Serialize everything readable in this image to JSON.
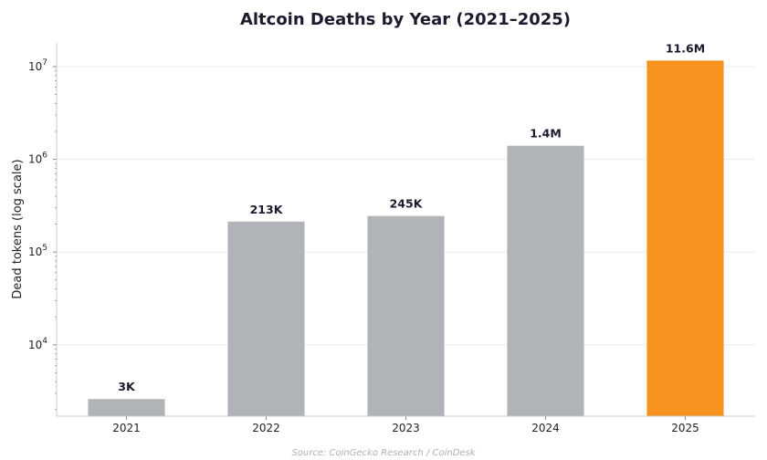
{
  "chart_data": {
    "type": "bar",
    "title": "Altcoin Deaths by Year (2021–2025)",
    "xlabel": "",
    "ylabel": "Dead tokens (log scale)",
    "yscale": "log",
    "ylim": [
      1700,
      18000000
    ],
    "categories": [
      "2021",
      "2022",
      "2023",
      "2024",
      "2025"
    ],
    "values": [
      2600,
      213000,
      245000,
      1400000,
      11600000
    ],
    "data_labels": [
      "3K",
      "213K",
      "245K",
      "1.4M",
      "11.6M"
    ],
    "bar_colors": [
      "#b0b3b7",
      "#b0b3b7",
      "#b0b3b7",
      "#b0b3b7",
      "#f7931e"
    ],
    "grid": true,
    "source": "Source: CoinGecko Research / CoinDesk"
  }
}
